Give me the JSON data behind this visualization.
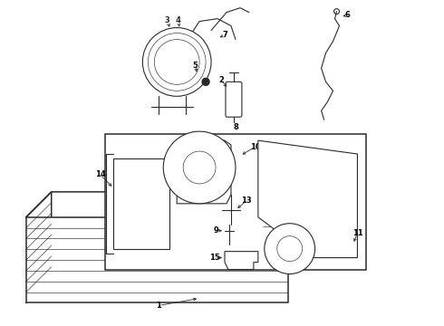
{
  "bg_color": "#ffffff",
  "line_color": "#2a2a2a",
  "label_color": "#000000",
  "fig_width": 4.9,
  "fig_height": 3.6,
  "dpi": 100,
  "label_fontsize": 6.0,
  "lw_main": 0.8,
  "lw_thin": 0.45,
  "lw_thick": 1.1
}
